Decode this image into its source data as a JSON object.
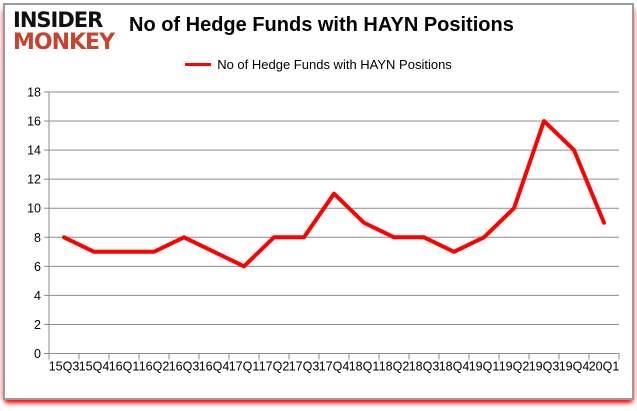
{
  "logo": {
    "line1": "INSIDER",
    "line2": "MONKEY"
  },
  "title": "No of Hedge Funds with HAYN Positions",
  "legend": {
    "label": "No of Hedge Funds with HAYN Positions"
  },
  "colors": {
    "line": "#ff0000",
    "grid": "#8c8c8c",
    "logo_monkey": "#c8432f",
    "logo_insider": "#111111",
    "card_border": "#9a9a9a"
  },
  "chart_data": {
    "type": "line",
    "title": "No of Hedge Funds with HAYN Positions",
    "categories": [
      "15Q3",
      "15Q4",
      "16Q1",
      "16Q2",
      "16Q3",
      "16Q4",
      "17Q1",
      "17Q2",
      "17Q3",
      "17Q4",
      "18Q1",
      "18Q2",
      "18Q3",
      "18Q4",
      "19Q1",
      "19Q2",
      "19Q3",
      "19Q4",
      "20Q1"
    ],
    "series": [
      {
        "name": "No of Hedge Funds with HAYN Positions",
        "values": [
          8,
          7,
          7,
          7,
          8,
          7,
          6,
          8,
          8,
          11,
          9,
          8,
          8,
          7,
          8,
          10,
          16,
          14,
          9
        ],
        "color": "#ff0000"
      }
    ],
    "xlabel": "",
    "ylabel": "",
    "ylim": [
      0,
      18
    ],
    "ytick_step": 2,
    "grid": "horizontal",
    "legend_position": "top-center"
  }
}
